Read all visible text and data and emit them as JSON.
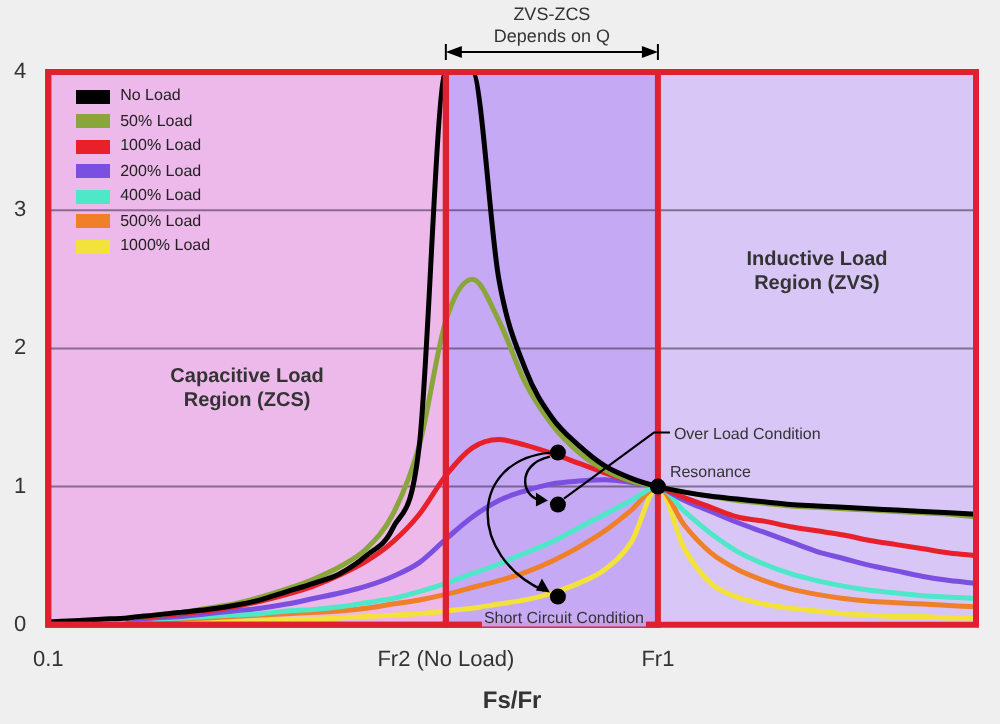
{
  "chart_data": {
    "type": "line",
    "xlabel": "Fs/Fr",
    "categories": [
      "0.1",
      null,
      null,
      null,
      null,
      null,
      null,
      null,
      null,
      null,
      null,
      null,
      null,
      null,
      null,
      "Fr2 (No Load)",
      null,
      null,
      null,
      null,
      null,
      null,
      null,
      "Fr1",
      null,
      null,
      null,
      null,
      null,
      null,
      null,
      null,
      null,
      null,
      null,
      null
    ],
    "ylim": [
      0,
      4
    ],
    "yticks": [
      0,
      1,
      2,
      3,
      4
    ],
    "grid": true,
    "legend": "top left",
    "marker": "none",
    "line_style": "solid",
    "series": [
      {
        "name": "No Load",
        "color": "#000000",
        "values": [
          0.02,
          0.03,
          0.04,
          0.05,
          0.07,
          0.09,
          0.11,
          0.14,
          0.18,
          0.24,
          0.3,
          0.37,
          0.5,
          0.7,
          1.3,
          4,
          4,
          2.5,
          1.85,
          1.5,
          1.3,
          1.15,
          1.06,
          1,
          0.96,
          0.93,
          0.91,
          0.89,
          0.87,
          0.86,
          0.85,
          0.84,
          0.83,
          0.82,
          0.81,
          0.8
        ]
      },
      {
        "name": "50% Load",
        "color": "#8aa63a",
        "values": [
          null,
          null,
          null,
          0.05,
          0.07,
          0.09,
          0.12,
          0.15,
          0.2,
          0.26,
          0.33,
          0.42,
          0.55,
          0.8,
          1.3,
          2.2,
          2.5,
          2.2,
          1.75,
          1.45,
          1.25,
          1.12,
          1.04,
          1,
          0.96,
          0.93,
          0.9,
          0.88,
          0.86,
          0.85,
          0.84,
          0.83,
          0.82,
          0.81,
          0.8,
          0.78
        ]
      },
      {
        "name": "100% Load",
        "color": "#e8202a",
        "values": [
          null,
          null,
          null,
          0.05,
          0.06,
          0.08,
          0.1,
          0.13,
          0.17,
          0.22,
          0.28,
          0.36,
          0.46,
          0.6,
          0.8,
          1.08,
          1.28,
          1.34,
          1.3,
          1.24,
          1.17,
          1.1,
          1.04,
          1,
          0.92,
          0.85,
          0.78,
          0.75,
          0.71,
          0.68,
          0.65,
          0.61,
          0.58,
          0.55,
          0.52,
          0.5
        ]
      },
      {
        "name": "200% Load",
        "color": "#7b4fe0",
        "values": [
          null,
          null,
          null,
          0.04,
          0.05,
          0.06,
          0.08,
          0.1,
          0.12,
          0.15,
          0.19,
          0.23,
          0.28,
          0.35,
          0.45,
          0.62,
          0.78,
          0.9,
          0.97,
          1.02,
          1.04,
          1.05,
          1.03,
          1,
          0.9,
          0.82,
          0.74,
          0.67,
          0.6,
          0.53,
          0.48,
          0.43,
          0.39,
          0.35,
          0.32,
          0.3
        ]
      },
      {
        "name": "400% Load",
        "color": "#4ee8c8",
        "values": [
          null,
          null,
          null,
          null,
          0.04,
          0.05,
          0.06,
          0.07,
          0.08,
          0.1,
          0.11,
          0.13,
          0.16,
          0.19,
          0.24,
          0.3,
          0.37,
          0.44,
          0.52,
          0.6,
          0.7,
          0.8,
          0.9,
          1,
          0.82,
          0.66,
          0.53,
          0.44,
          0.37,
          0.32,
          0.28,
          0.25,
          0.23,
          0.21,
          0.2,
          0.19
        ]
      },
      {
        "name": "500% Load",
        "color": "#f07f2a",
        "values": [
          null,
          null,
          null,
          0.02,
          0.03,
          0.04,
          0.05,
          0.06,
          0.07,
          0.08,
          0.09,
          0.1,
          0.12,
          0.15,
          0.18,
          0.22,
          0.27,
          0.32,
          0.38,
          0.46,
          0.56,
          0.68,
          0.83,
          1,
          0.72,
          0.52,
          0.4,
          0.32,
          0.26,
          0.22,
          0.19,
          0.17,
          0.16,
          0.15,
          0.14,
          0.13
        ]
      },
      {
        "name": "1000% Load",
        "color": "#f2e23a",
        "values": [
          null,
          null,
          null,
          null,
          null,
          0.02,
          0.02,
          0.03,
          0.03,
          0.04,
          0.04,
          0.05,
          0.06,
          0.07,
          0.08,
          0.1,
          0.12,
          0.15,
          0.18,
          0.23,
          0.3,
          0.4,
          0.6,
          1,
          0.55,
          0.3,
          0.2,
          0.15,
          0.12,
          0.1,
          0.08,
          0.07,
          0.06,
          0.06,
          0.05,
          0.05
        ]
      }
    ],
    "bands": [
      {
        "axis": "x",
        "from": "0.1",
        "to": "Fr2 (No Load)",
        "label": "Capacitive Load Region (ZCS)",
        "color": "#f0b6e8"
      },
      {
        "axis": "x",
        "from": "Fr2 (No Load)",
        "to": "Fr1",
        "label": "ZVS-ZCS Depends on Q",
        "color": "#c3a3f5"
      }
    ],
    "annotations": [
      "Inductive Load Region (ZVS)",
      {
        "text": "Resonance",
        "x": "Fr1",
        "y": 1
      },
      "Over Load Condition",
      "Short Circuit Condition"
    ]
  }
}
